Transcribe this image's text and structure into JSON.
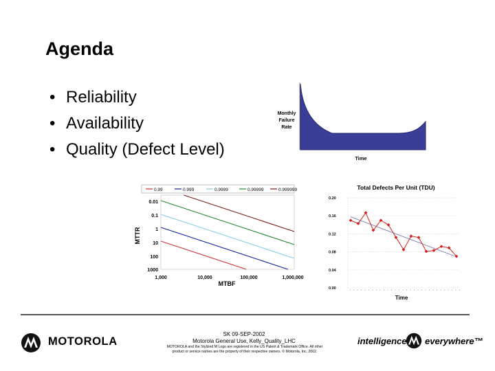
{
  "slide": {
    "title": "Agenda",
    "bullets": [
      "Reliability",
      "Availability",
      "Quality (Defect Level)"
    ],
    "bullet_char": "•"
  },
  "bathtub": {
    "ylabel_lines": [
      "Monthly",
      "Failure",
      "Rate"
    ],
    "xlabel": "Time",
    "fill_color": "#3b3e96"
  },
  "mttr_chart": {
    "legend": [
      "0.99",
      "0.999",
      "0.9999",
      "0.99999",
      "0.999999"
    ],
    "legend_colors": [
      "#d03030",
      "#101f9c",
      "#8ccbe6",
      "#1f8a2a",
      "#7a1a1a"
    ],
    "y_ticks": [
      "0.01",
      "0.1",
      "1",
      "10",
      "100",
      "1000"
    ],
    "x_ticks": [
      "1,000",
      "10,000",
      "100,000",
      "1,000,000"
    ],
    "ylabel": "MTTR",
    "xlabel": "MTBF"
  },
  "chart_data": {
    "type": "line",
    "title": "Total Defects Per Unit (TDU)",
    "xlabel": "Time",
    "ylabel": "",
    "y_ticks": [
      "0.20",
      "0.16",
      "0.12",
      "0.08",
      "0.04",
      "0.00"
    ],
    "ylim": [
      0,
      0.2
    ],
    "series": [
      {
        "name": "TDU",
        "color": "#d02020",
        "values": [
          0.15,
          0.143,
          0.167,
          0.128,
          0.15,
          0.14,
          0.112,
          0.085,
          0.115,
          0.112,
          0.081,
          0.083,
          0.092,
          0.089,
          0.07
        ]
      },
      {
        "name": "Trend",
        "color": "#8a8ab8",
        "values": [
          0.158,
          0.069
        ]
      }
    ]
  },
  "footer": {
    "date": "SK 09-SEP-2002",
    "classification": "Motorola General Use, Kelly_Quality_LHC",
    "legal_line1": "MOTOROLA and the Stylized M Logo are registered in the US Patent & Trademark Office. All other",
    "legal_line2": "product or service names are the property of their respective owners. © Motorola, Inc. 2002.",
    "brand": "MOTOROLA",
    "tagline_left": "intelligence",
    "tagline_right": "everywhere™"
  }
}
